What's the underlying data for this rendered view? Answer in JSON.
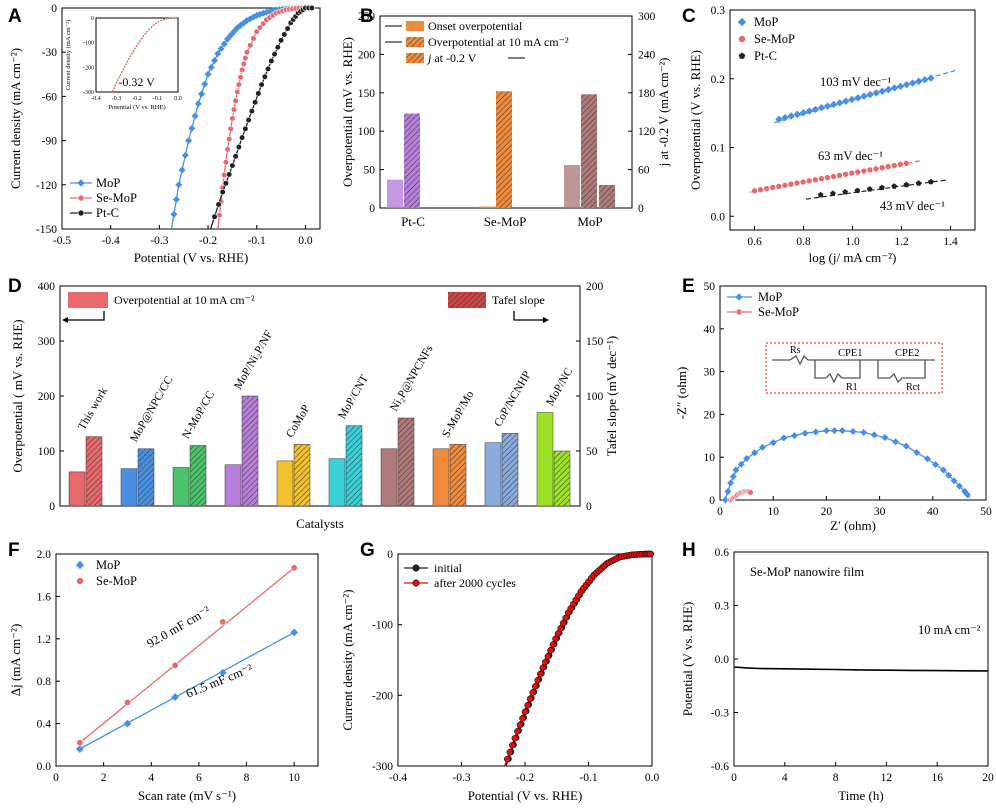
{
  "figure": {
    "panel_letters": [
      "A",
      "B",
      "C",
      "D",
      "E",
      "F",
      "G",
      "H"
    ]
  },
  "chart_data": [
    {
      "panel": "A",
      "type": "line",
      "xlabel": "Potential (V vs. RHE)",
      "ylabel": "Current density (mA cm⁻²)",
      "xlim": [
        -0.5,
        0.03
      ],
      "ylim": [
        -150,
        0
      ],
      "xticks": [
        -0.5,
        -0.4,
        -0.3,
        -0.2,
        -0.1,
        0.0
      ],
      "xtick_labels": [
        "-0.5",
        "-0.4",
        "-0.3",
        "-0.2",
        "-0.1",
        "0.0"
      ],
      "yticks": [
        0,
        -30,
        -60,
        -90,
        -120,
        -150
      ],
      "ytick_labels": [
        "0",
        "-30",
        "-60",
        "-90",
        "-120",
        "-150"
      ],
      "series": [
        {
          "name": "MoP",
          "color": "#4a90e2",
          "marker": "diamond",
          "x": [
            -0.275,
            -0.26,
            -0.24,
            -0.22,
            -0.2,
            -0.18,
            -0.16,
            -0.14,
            -0.12,
            -0.1,
            -0.08,
            -0.06,
            -0.04,
            -0.02,
            0.0,
            0.02
          ],
          "y": [
            -150,
            -120,
            -90,
            -65,
            -45,
            -31,
            -21,
            -13.5,
            -8.5,
            -5,
            -2.8,
            -1.4,
            -0.6,
            -0.2,
            0,
            0
          ]
        },
        {
          "name": "Se-MoP",
          "color": "#e8696c",
          "marker": "circle",
          "x": [
            -0.18,
            -0.17,
            -0.16,
            -0.15,
            -0.14,
            -0.13,
            -0.12,
            -0.1,
            -0.08,
            -0.06,
            -0.04,
            -0.02,
            0.0,
            0.02
          ],
          "y": [
            -150,
            -122,
            -96,
            -75,
            -57,
            -42,
            -30,
            -16,
            -8,
            -3.5,
            -1.2,
            -0.3,
            0,
            0
          ]
        },
        {
          "name": "Pt-C",
          "color": "#222222",
          "marker": "circle",
          "x": [
            -0.195,
            -0.17,
            -0.15,
            -0.13,
            -0.11,
            -0.09,
            -0.07,
            -0.05,
            -0.03,
            -0.015,
            0.0,
            0.02
          ],
          "y": [
            -150,
            -125,
            -107,
            -88,
            -70,
            -52,
            -36,
            -22,
            -10,
            -3.5,
            0,
            0
          ]
        }
      ],
      "legend": [
        "MoP",
        "Se-MoP",
        "Pt-C"
      ],
      "inset": {
        "xlabel": "Potential (V vs. RHE)",
        "ylabel": "Current density (mA cm⁻²)",
        "xlim": [
          -0.4,
          0.0
        ],
        "ylim": [
          -300,
          0
        ],
        "xtick_labels": [
          "-0.4",
          "-0.3",
          "-0.2",
          "-0.1",
          "0.0"
        ],
        "ytick_labels": [
          "0",
          "-100",
          "-200",
          "-300"
        ],
        "annotation": "-0.32 V",
        "annotation_x": -0.32,
        "series": {
          "name": "Se-MoP",
          "x": [
            -0.32,
            -0.3,
            -0.27,
            -0.24,
            -0.21,
            -0.18,
            -0.15,
            -0.12,
            -0.09,
            -0.06,
            -0.03,
            0.0
          ],
          "y": [
            -300,
            -262,
            -212,
            -166,
            -124,
            -86,
            -54,
            -29,
            -12,
            -3,
            -0.5,
            0
          ]
        }
      }
    },
    {
      "panel": "B",
      "type": "bar",
      "categories": [
        "Pt-C",
        "Se-MoP",
        "MoP"
      ],
      "ylabel": "Overpotential (mV vs. RHE)",
      "ylim": [
        0,
        250
      ],
      "yticks": [
        0,
        50,
        100,
        150,
        200,
        250
      ],
      "ylabel_right": "j at -0.2 V (mA cm⁻²)",
      "ylim_right": [
        0,
        300
      ],
      "yticks_right": [
        0,
        60,
        120,
        180,
        240,
        300
      ],
      "series": [
        {
          "name": "Onset overpotential",
          "axis": "left",
          "values": [
            37,
            2,
            56
          ]
        },
        {
          "name": "Overpotential at 10 mA cm⁻²",
          "axis": "left",
          "values": [
            123,
            152,
            148
          ]
        },
        {
          "name": "j at -0.2 V",
          "axis": "right",
          "values": [
            null,
            null,
            36
          ]
        }
      ],
      "category_colors": [
        "#b87ed9",
        "#f08a3c",
        "#b07a7a"
      ]
    },
    {
      "panel": "C",
      "type": "scatter",
      "xlabel": "log (j/ mA cm⁻²)",
      "ylabel": "Overpotential (V vs. RHE)",
      "xlim": [
        0.5,
        1.5
      ],
      "ylim": [
        -0.02,
        0.3
      ],
      "xticks": [
        0.6,
        0.8,
        1.0,
        1.2,
        1.4
      ],
      "yticks": [
        0.0,
        0.1,
        0.2,
        0.3
      ],
      "legend": [
        "MoP",
        "Se-MoP",
        "Pt-C"
      ],
      "series": [
        {
          "name": "MoP",
          "color": "#4a90e2",
          "marker": "diamond",
          "x_range": [
            0.7,
            1.32
          ],
          "y_range": [
            0.141,
            0.201
          ],
          "fit": [
            [
              0.68,
              0.136
            ],
            [
              1.42,
              0.212
            ]
          ],
          "tafel_label": "103  mV dec⁻¹"
        },
        {
          "name": "Se-MoP",
          "color": "#e8696c",
          "marker": "circle",
          "x_range": [
            0.6,
            1.22
          ],
          "y_range": [
            0.037,
            0.077
          ],
          "fit": [
            [
              0.58,
              0.035
            ],
            [
              1.28,
              0.081
            ]
          ],
          "tafel_label": "63 mV dec⁻¹"
        },
        {
          "name": "Pt-C",
          "color": "#222222",
          "marker": "pentagon",
          "x_range": [
            0.87,
            1.32
          ],
          "y_range": [
            0.031,
            0.05
          ],
          "fit": [
            [
              0.81,
              0.025
            ],
            [
              1.39,
              0.053
            ]
          ],
          "tafel_label": "43 mV dec⁻¹"
        }
      ]
    },
    {
      "panel": "D",
      "type": "bar",
      "xlabel": "Catalysts",
      "ylabel": "Overpotential ( mV vs. RHE)",
      "ylim": [
        0,
        400
      ],
      "yticks": [
        0,
        100,
        200,
        300,
        400
      ],
      "ylabel_right": "Tafel slope (mV dec⁻¹)",
      "ylim_right": [
        0,
        200
      ],
      "yticks_right": [
        0,
        50,
        100,
        150,
        200
      ],
      "legend": [
        "Overpotential at 10 mA cm⁻²",
        "Tafel slope"
      ],
      "categories": [
        "This work",
        "MoP@NPC/CC",
        "N-MoP/CC",
        "MoP/Ni₂P/NF",
        "CoMoP",
        "MoP/CNT",
        "Ni₂P@NPCNFs",
        "S-MoP/Mo",
        "CoP/NCNHP",
        "MoP/NC"
      ],
      "colors": [
        "#e8696c",
        "#4a90e2",
        "#4cc26b",
        "#b87ed9",
        "#f2c12e",
        "#3ad0d8",
        "#b07a7a",
        "#f08a3c",
        "#8aacdc",
        "#9be228"
      ],
      "overpotential": [
        62,
        68,
        70,
        75,
        82,
        86,
        104,
        104,
        115,
        170
      ],
      "tafel_slope": [
        63,
        52,
        55,
        100,
        56,
        73,
        80,
        56,
        66,
        50
      ]
    },
    {
      "panel": "E",
      "type": "scatter",
      "xlabel": "Z′ (ohm)",
      "ylabel": "-Z″ (ohm)",
      "xlim": [
        0,
        50
      ],
      "ylim": [
        0,
        50
      ],
      "xticks": [
        0,
        10,
        20,
        30,
        40,
        50
      ],
      "yticks": [
        0,
        10,
        20,
        30,
        40,
        50
      ],
      "legend": [
        "MoP",
        "Se-MoP"
      ],
      "circuit_labels": [
        "Rs",
        "CPE1",
        "R1",
        "CPE2",
        "Rct"
      ],
      "series": [
        {
          "name": "MoP",
          "color": "#4a90e2",
          "marker": "diamond",
          "x": [
            1,
            2,
            3,
            5,
            8,
            12,
            16,
            20,
            23,
            27,
            31,
            35,
            39,
            42,
            44,
            46,
            47
          ],
          "y": [
            0,
            4,
            7,
            9.7,
            12.3,
            14.5,
            15.6,
            16.2,
            16.2,
            15.8,
            14.6,
            12.6,
            9.6,
            7,
            4.5,
            2,
            0.5
          ]
        },
        {
          "name": "Se-MoP",
          "color": "#e8696c",
          "marker": "circle",
          "x": [
            2,
            2.5,
            3,
            3.5,
            4,
            4.5,
            5,
            5.5,
            6
          ],
          "y": [
            0,
            0.5,
            1,
            1.5,
            1.8,
            2,
            2,
            1.9,
            1.6
          ]
        }
      ]
    },
    {
      "panel": "F",
      "type": "scatter",
      "xlabel": "Scan rate (mV s⁻¹)",
      "ylabel": "Δj (mA cm⁻²)",
      "xlim": [
        0,
        11
      ],
      "ylim": [
        0,
        2.0
      ],
      "xticks": [
        0,
        2,
        4,
        6,
        8,
        10
      ],
      "yticks": [
        0.0,
        0.4,
        0.8,
        1.2,
        1.6,
        2.0
      ],
      "legend": [
        "MoP",
        "Se-MoP"
      ],
      "series": [
        {
          "name": "MoP",
          "color": "#4a90e2",
          "marker": "diamond",
          "x": [
            1,
            3,
            5,
            7,
            10
          ],
          "y": [
            0.16,
            0.4,
            0.65,
            0.88,
            1.26
          ],
          "label": "61.5 mF cm⁻²"
        },
        {
          "name": "Se-MoP",
          "color": "#e8696c",
          "marker": "circle",
          "x": [
            1,
            3,
            5,
            7,
            10
          ],
          "y": [
            0.22,
            0.6,
            0.95,
            1.36,
            1.87
          ],
          "label": "92.0 mF cm⁻²"
        }
      ]
    },
    {
      "panel": "G",
      "type": "line",
      "xlabel": "Potential (V vs. RHE)",
      "ylabel": "Current density (mA cm⁻²)",
      "xlim": [
        -0.4,
        0.0
      ],
      "ylim": [
        -300,
        0
      ],
      "xticks": [
        -0.4,
        -0.3,
        -0.2,
        -0.1,
        0.0
      ],
      "yticks": [
        0,
        -100,
        -200,
        -300
      ],
      "legend": [
        "initial",
        "after 2000 cycles"
      ],
      "series": [
        {
          "name": "initial",
          "color": "#222222",
          "x": [
            -0.23,
            -0.21,
            -0.19,
            -0.17,
            -0.15,
            -0.13,
            -0.11,
            -0.09,
            -0.07,
            -0.05,
            -0.03,
            -0.01,
            0.0
          ],
          "y": [
            -300,
            -250,
            -204,
            -160,
            -119,
            -82,
            -52,
            -29,
            -13,
            -4,
            -1,
            0,
            0
          ]
        },
        {
          "name": "after 2000 cycles",
          "color": "#e01010",
          "x": [
            -0.232,
            -0.212,
            -0.192,
            -0.172,
            -0.152,
            -0.132,
            -0.112,
            -0.092,
            -0.072,
            -0.052,
            -0.032,
            -0.012,
            0.0
          ],
          "y": [
            -300,
            -251,
            -205,
            -161,
            -120,
            -83,
            -53,
            -30,
            -14,
            -4.5,
            -1.2,
            -0.1,
            0
          ]
        }
      ]
    },
    {
      "panel": "H",
      "type": "line",
      "xlabel": "Time (h)",
      "ylabel": "Potential (V vs. RHE)",
      "xlim": [
        0,
        20
      ],
      "ylim": [
        -0.6,
        0.6
      ],
      "xticks": [
        0,
        4,
        8,
        12,
        16,
        20
      ],
      "yticks": [
        -0.6,
        -0.3,
        0.0,
        0.3,
        0.6
      ],
      "title": "Se-MoP nanowire film",
      "annotation": "10 mA cm⁻²",
      "series": [
        {
          "name": "Se-MoP",
          "color": "#000000",
          "x": [
            0,
            1,
            2,
            4,
            6,
            8,
            10,
            12,
            14,
            16,
            18,
            20
          ],
          "y": [
            -0.045,
            -0.05,
            -0.053,
            -0.055,
            -0.057,
            -0.059,
            -0.061,
            -0.063,
            -0.064,
            -0.065,
            -0.066,
            -0.067
          ]
        }
      ]
    }
  ]
}
